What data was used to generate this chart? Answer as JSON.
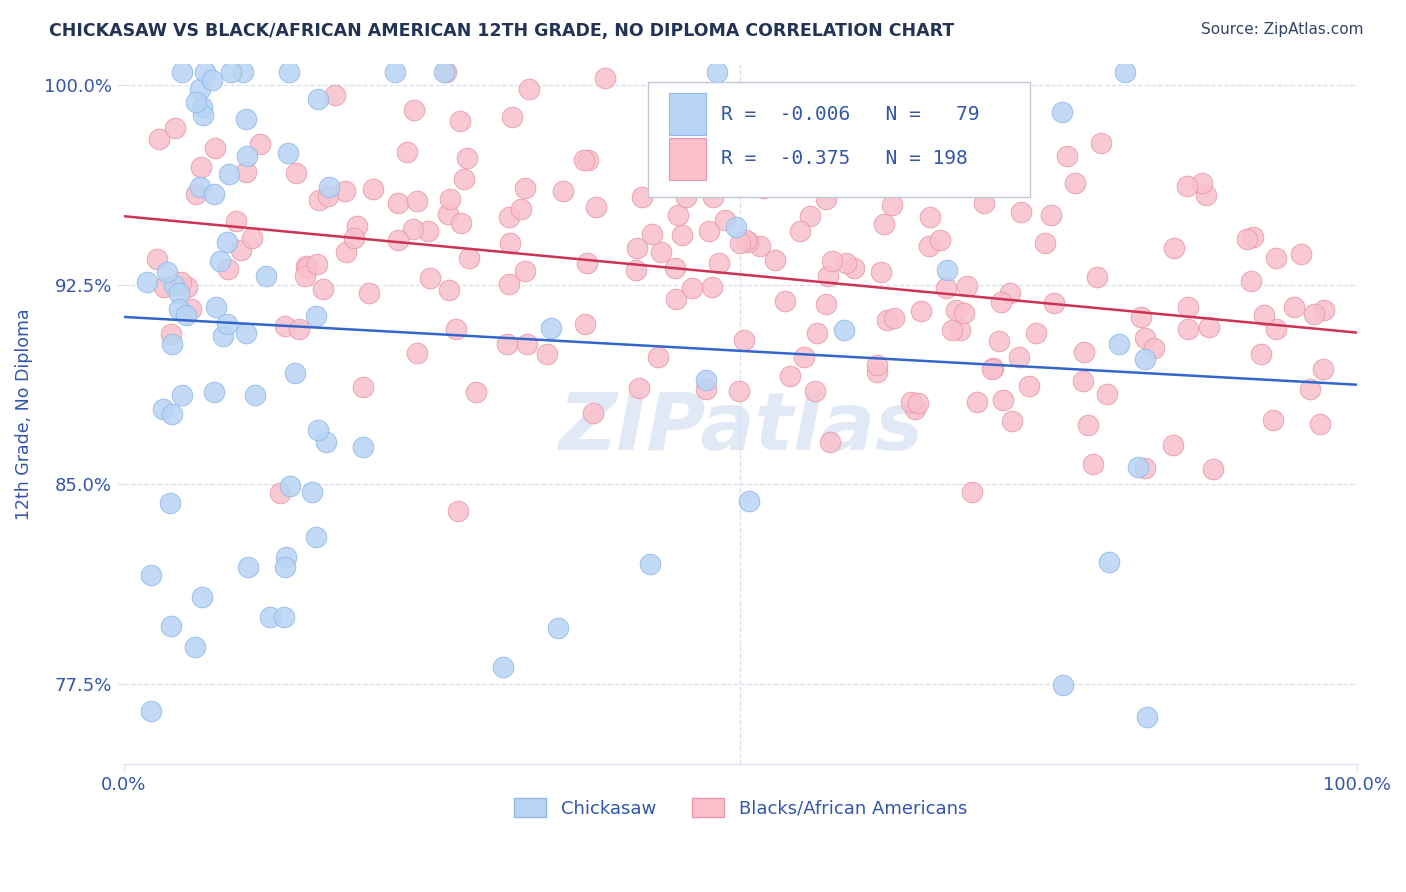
{
  "title": "CHICKASAW VS BLACK/AFRICAN AMERICAN 12TH GRADE, NO DIPLOMA CORRELATION CHART",
  "source": "Source: ZipAtlas.com",
  "ylabel": "12th Grade, No Diploma",
  "xlim": [
    0.0,
    1.0
  ],
  "ylim": [
    0.745,
    1.008
  ],
  "yticks": [
    0.775,
    0.85,
    0.925,
    1.0
  ],
  "ytick_labels": [
    "77.5%",
    "85.0%",
    "92.5%",
    "100.0%"
  ],
  "xticks": [
    0.0,
    1.0
  ],
  "xtick_labels": [
    "0.0%",
    "100.0%"
  ],
  "legend_labels": [
    "Chickasaw",
    "Blacks/African Americans"
  ],
  "legend_R": [
    "-0.006",
    "-0.375"
  ],
  "legend_N": [
    "79",
    "198"
  ],
  "chickasaw_color": "#b8d4f5",
  "black_color": "#f9c0cc",
  "chickasaw_edge": "#90b8e8",
  "black_edge": "#e898a8",
  "trend_blue": "#3366cc",
  "trend_pink": "#cc3355",
  "watermark": "ZIPatlas",
  "watermark_color": "#c8d8ee",
  "background": "#ffffff",
  "grid_color": "#d8dff0",
  "title_color": "#223355",
  "source_color": "#334466",
  "axis_color": "#3355aa",
  "legend_text_color": "#000000",
  "legend_val_color": "#3355aa",
  "chickasaw_R": -0.006,
  "chickasaw_N": 79,
  "black_R": -0.375,
  "black_N": 198,
  "seed": 42
}
